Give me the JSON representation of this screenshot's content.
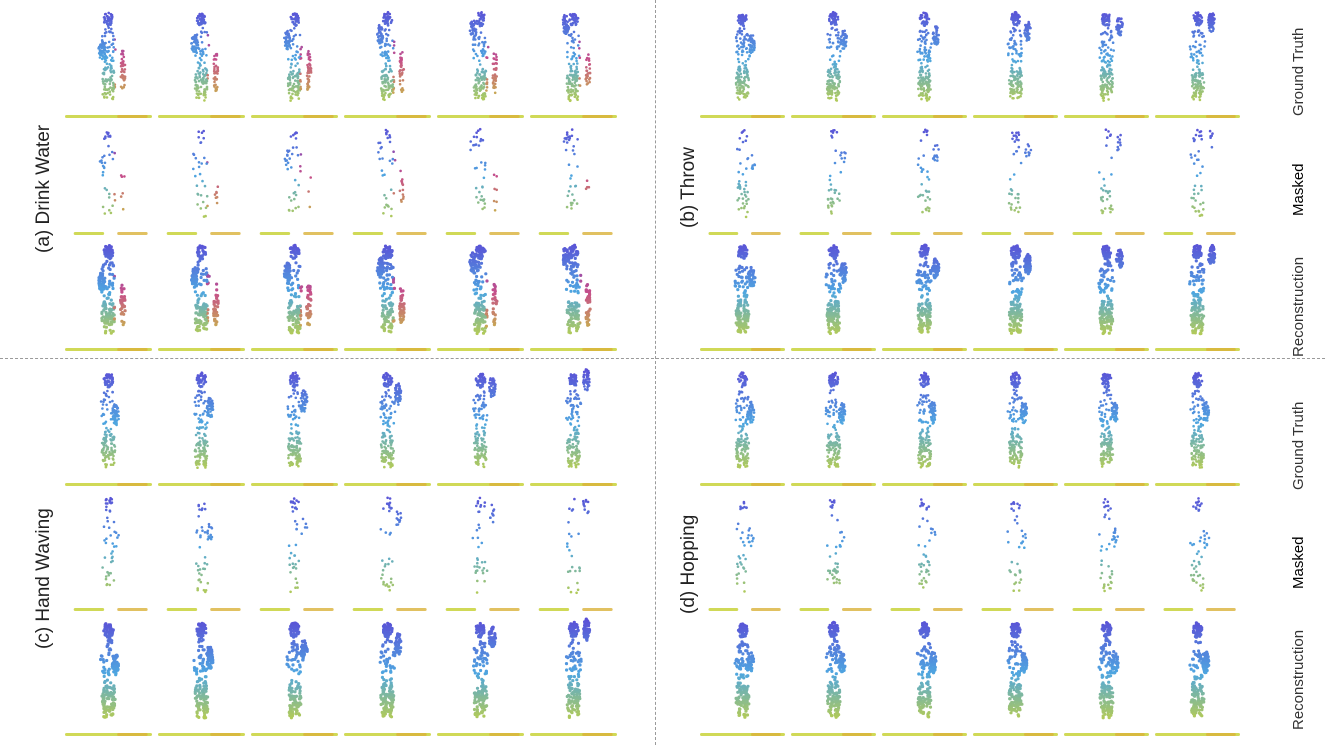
{
  "panels": [
    {
      "id": "a",
      "label": "(a) Drink Water",
      "frames": 6
    },
    {
      "id": "b",
      "label": "(b) Throw",
      "frames": 6
    },
    {
      "id": "c",
      "label": "(c) Hand Waving",
      "frames": 6
    },
    {
      "id": "d",
      "label": "(d) Hopping",
      "frames": 6
    }
  ],
  "row_labels": {
    "ground_truth": "Ground Truth",
    "masked": "Masked",
    "reconstruction": "Reconstruction"
  },
  "colors": {
    "top": "#5b4fd6",
    "mid_cool": "#4ea6e0",
    "mid_warm": "#c64f8a",
    "bottom": "#c8d23a",
    "floor": "#d9b23a",
    "divider": "#9a9a9a"
  }
}
